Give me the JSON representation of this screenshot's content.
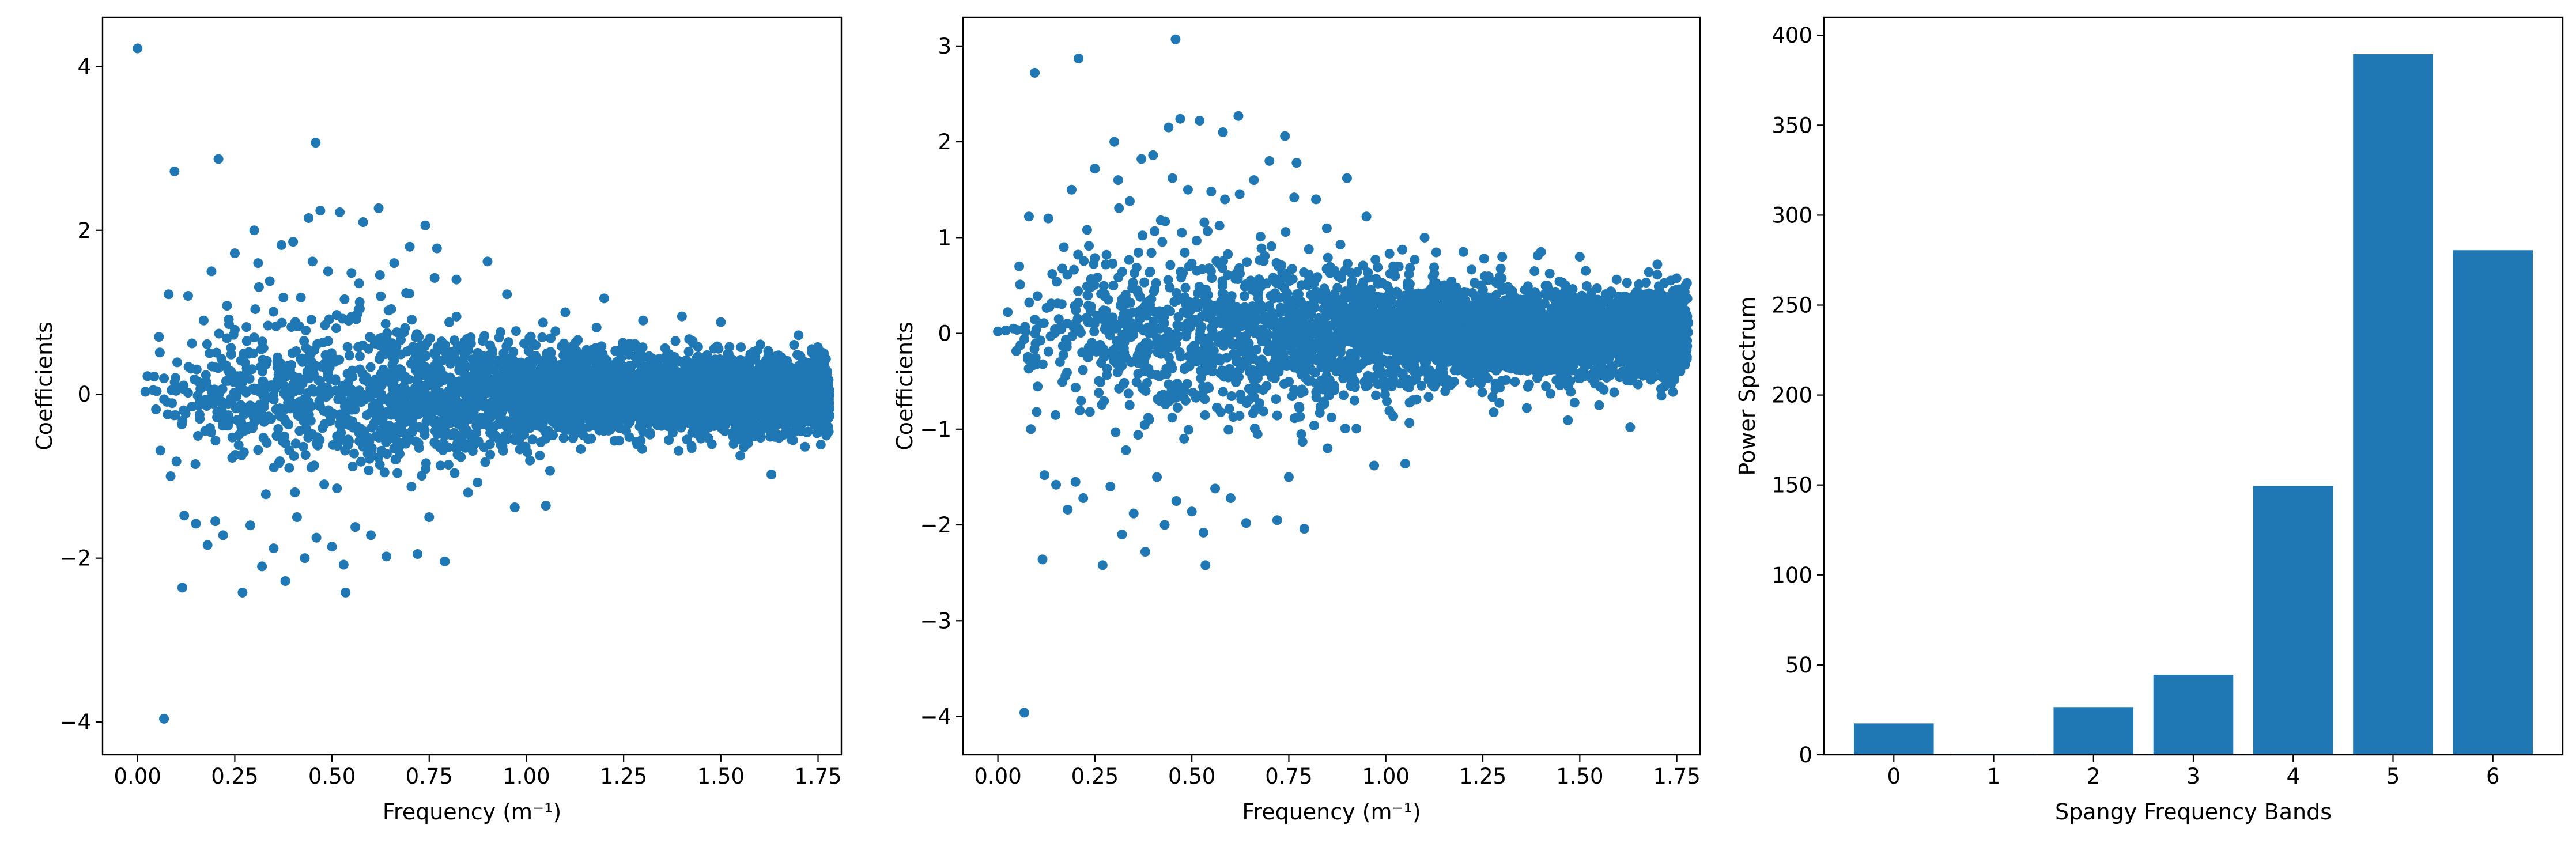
{
  "chart_data": [
    {
      "type": "scatter",
      "xlabel": "Frequency (m⁻¹)",
      "ylabel": "Coefficients",
      "xlim": [
        -0.09,
        1.81
      ],
      "ylim": [
        -4.4,
        4.6
      ],
      "xticks": [
        0.0,
        0.25,
        0.5,
        0.75,
        1.0,
        1.25,
        1.5,
        1.75
      ],
      "xtick_labels": [
        "0.00",
        "0.25",
        "0.50",
        "0.75",
        "1.00",
        "1.25",
        "1.50",
        "1.75"
      ],
      "yticks": [
        -4,
        -2,
        0,
        2,
        4
      ],
      "ytick_labels": [
        "−4",
        "−2",
        "0",
        "2",
        "4"
      ],
      "grid": false,
      "color": "#1f77b4",
      "points": [
        [
          0.0,
          4.22
        ],
        [
          0.068,
          -3.96
        ],
        [
          0.095,
          2.72
        ],
        [
          0.208,
          2.87
        ],
        [
          0.458,
          3.07
        ],
        [
          0.02,
          0.03
        ],
        [
          0.04,
          0.05
        ],
        [
          0.055,
          0.7
        ],
        [
          0.08,
          1.22
        ],
        [
          0.085,
          -1.0
        ],
        [
          0.1,
          -0.82
        ],
        [
          0.115,
          -2.36
        ],
        [
          0.12,
          -1.48
        ],
        [
          0.13,
          1.2
        ],
        [
          0.14,
          0.62
        ],
        [
          0.15,
          -1.58
        ],
        [
          0.16,
          -0.3
        ],
        [
          0.17,
          0.9
        ],
        [
          0.18,
          -1.84
        ],
        [
          0.19,
          1.5
        ],
        [
          0.2,
          -1.55
        ],
        [
          0.22,
          -1.72
        ],
        [
          0.23,
          1.08
        ],
        [
          0.24,
          0.28
        ],
        [
          0.25,
          1.72
        ],
        [
          0.26,
          -0.62
        ],
        [
          0.27,
          -2.42
        ],
        [
          0.28,
          0.82
        ],
        [
          0.29,
          -1.6
        ],
        [
          0.3,
          2.0
        ],
        [
          0.31,
          1.6
        ],
        [
          0.32,
          -2.1
        ],
        [
          0.33,
          -1.22
        ],
        [
          0.34,
          1.38
        ],
        [
          0.35,
          -1.88
        ],
        [
          0.36,
          0.45
        ],
        [
          0.37,
          1.82
        ],
        [
          0.38,
          -2.28
        ],
        [
          0.39,
          -0.9
        ],
        [
          0.4,
          1.86
        ],
        [
          0.41,
          -1.5
        ],
        [
          0.42,
          1.18
        ],
        [
          0.43,
          -2.0
        ],
        [
          0.44,
          2.15
        ],
        [
          0.45,
          1.62
        ],
        [
          0.46,
          -1.75
        ],
        [
          0.47,
          2.24
        ],
        [
          0.48,
          -1.1
        ],
        [
          0.49,
          1.5
        ],
        [
          0.5,
          -1.86
        ],
        [
          0.52,
          2.22
        ],
        [
          0.53,
          -2.08
        ],
        [
          0.535,
          -2.42
        ],
        [
          0.55,
          1.48
        ],
        [
          0.56,
          -1.62
        ],
        [
          0.58,
          2.1
        ],
        [
          0.6,
          -1.72
        ],
        [
          0.62,
          2.27
        ],
        [
          0.64,
          -1.98
        ],
        [
          0.66,
          1.6
        ],
        [
          0.7,
          1.8
        ],
        [
          0.72,
          -1.95
        ],
        [
          0.74,
          2.06
        ],
        [
          0.75,
          -1.5
        ],
        [
          0.77,
          1.78
        ],
        [
          0.79,
          -2.04
        ],
        [
          0.82,
          1.4
        ],
        [
          0.85,
          -1.2
        ],
        [
          0.9,
          1.62
        ],
        [
          0.95,
          1.22
        ],
        [
          0.97,
          -1.38
        ],
        [
          1.05,
          -1.36
        ],
        [
          1.1,
          1.0
        ],
        [
          1.2,
          1.17
        ],
        [
          1.3,
          0.9
        ],
        [
          1.4,
          0.95
        ],
        [
          1.5,
          0.88
        ],
        [
          1.55,
          -0.75
        ],
        [
          1.63,
          -0.98
        ],
        [
          1.7,
          0.72
        ]
      ],
      "dense_bands": [
        [
          0.1,
          0.55
        ],
        [
          0.2,
          0.6
        ],
        [
          0.3,
          0.7
        ],
        [
          0.4,
          0.8
        ],
        [
          0.5,
          0.85
        ],
        [
          0.6,
          0.85
        ],
        [
          0.7,
          0.8
        ],
        [
          0.8,
          0.72
        ],
        [
          0.9,
          0.62
        ],
        [
          1.0,
          0.56
        ],
        [
          1.1,
          0.5
        ],
        [
          1.2,
          0.46
        ],
        [
          1.3,
          0.44
        ],
        [
          1.4,
          0.42
        ],
        [
          1.5,
          0.41
        ],
        [
          1.6,
          0.4
        ],
        [
          1.7,
          0.4
        ],
        [
          1.78,
          0.4
        ]
      ]
    },
    {
      "type": "scatter",
      "xlabel": "Frequency (m⁻¹)",
      "ylabel": "Coefficients",
      "xlim": [
        -0.09,
        1.81
      ],
      "ylim": [
        -4.4,
        3.3
      ],
      "xticks": [
        0.0,
        0.25,
        0.5,
        0.75,
        1.0,
        1.25,
        1.5,
        1.75
      ],
      "xtick_labels": [
        "0.00",
        "0.25",
        "0.50",
        "0.75",
        "1.00",
        "1.25",
        "1.50",
        "1.75"
      ],
      "yticks": [
        -4,
        -3,
        -2,
        -1,
        0,
        1,
        2,
        3
      ],
      "ytick_labels": [
        "−4",
        "−3",
        "−2",
        "−1",
        "0",
        "1",
        "2",
        "3"
      ],
      "grid": false,
      "color": "#1f77b4",
      "points": [
        [
          0.0,
          0.02
        ],
        [
          0.068,
          -3.96
        ],
        [
          0.095,
          2.72
        ],
        [
          0.208,
          2.87
        ],
        [
          0.458,
          3.07
        ],
        [
          0.02,
          0.03
        ],
        [
          0.04,
          0.05
        ],
        [
          0.055,
          0.7
        ],
        [
          0.08,
          1.22
        ],
        [
          0.085,
          -1.0
        ],
        [
          0.1,
          -0.82
        ],
        [
          0.115,
          -2.36
        ],
        [
          0.12,
          -1.48
        ],
        [
          0.13,
          1.2
        ],
        [
          0.14,
          0.62
        ],
        [
          0.15,
          -1.58
        ],
        [
          0.16,
          -0.3
        ],
        [
          0.17,
          0.9
        ],
        [
          0.18,
          -1.84
        ],
        [
          0.19,
          1.5
        ],
        [
          0.2,
          -1.55
        ],
        [
          0.22,
          -1.72
        ],
        [
          0.23,
          1.08
        ],
        [
          0.24,
          0.28
        ],
        [
          0.25,
          1.72
        ],
        [
          0.26,
          -0.62
        ],
        [
          0.27,
          -2.42
        ],
        [
          0.28,
          0.82
        ],
        [
          0.29,
          -1.6
        ],
        [
          0.3,
          2.0
        ],
        [
          0.31,
          1.6
        ],
        [
          0.32,
          -2.1
        ],
        [
          0.33,
          -1.22
        ],
        [
          0.34,
          1.38
        ],
        [
          0.35,
          -1.88
        ],
        [
          0.36,
          0.45
        ],
        [
          0.37,
          1.82
        ],
        [
          0.38,
          -2.28
        ],
        [
          0.39,
          -0.9
        ],
        [
          0.4,
          1.86
        ],
        [
          0.41,
          -1.5
        ],
        [
          0.42,
          1.18
        ],
        [
          0.43,
          -2.0
        ],
        [
          0.44,
          2.15
        ],
        [
          0.45,
          1.62
        ],
        [
          0.46,
          -1.75
        ],
        [
          0.47,
          2.24
        ],
        [
          0.48,
          -1.1
        ],
        [
          0.49,
          1.5
        ],
        [
          0.5,
          -1.86
        ],
        [
          0.52,
          2.22
        ],
        [
          0.53,
          -2.08
        ],
        [
          0.535,
          -2.42
        ],
        [
          0.55,
          1.48
        ],
        [
          0.56,
          -1.62
        ],
        [
          0.58,
          2.1
        ],
        [
          0.6,
          -1.72
        ],
        [
          0.62,
          2.27
        ],
        [
          0.64,
          -1.98
        ],
        [
          0.66,
          1.6
        ],
        [
          0.7,
          1.8
        ],
        [
          0.72,
          -1.95
        ],
        [
          0.74,
          2.06
        ],
        [
          0.75,
          -1.5
        ],
        [
          0.77,
          1.78
        ],
        [
          0.79,
          -2.04
        ],
        [
          0.82,
          1.4
        ],
        [
          0.85,
          -1.2
        ],
        [
          0.9,
          1.62
        ],
        [
          0.95,
          1.22
        ],
        [
          0.97,
          -1.38
        ],
        [
          1.05,
          -1.36
        ],
        [
          1.1,
          1.0
        ],
        [
          1.2,
          0.85
        ],
        [
          1.3,
          0.8
        ],
        [
          1.4,
          0.85
        ],
        [
          1.5,
          0.8
        ],
        [
          1.55,
          -0.75
        ],
        [
          1.63,
          -0.98
        ],
        [
          1.7,
          0.72
        ]
      ],
      "dense_bands": [
        [
          0.1,
          0.55
        ],
        [
          0.2,
          0.6
        ],
        [
          0.3,
          0.7
        ],
        [
          0.4,
          0.8
        ],
        [
          0.5,
          0.85
        ],
        [
          0.6,
          0.85
        ],
        [
          0.7,
          0.8
        ],
        [
          0.8,
          0.72
        ],
        [
          0.9,
          0.62
        ],
        [
          1.0,
          0.56
        ],
        [
          1.1,
          0.5
        ],
        [
          1.2,
          0.46
        ],
        [
          1.3,
          0.44
        ],
        [
          1.4,
          0.42
        ],
        [
          1.5,
          0.41
        ],
        [
          1.6,
          0.4
        ],
        [
          1.7,
          0.4
        ],
        [
          1.78,
          0.4
        ]
      ]
    },
    {
      "type": "bar",
      "xlabel": "Spangy Frequency Bands",
      "ylabel": "Power Spectrum",
      "categories": [
        "0",
        "1",
        "2",
        "3",
        "4",
        "5",
        "6"
      ],
      "values": [
        17.5,
        0.5,
        26.5,
        44.5,
        149.5,
        389.5,
        280.5
      ],
      "xlim": [
        -0.7,
        6.7
      ],
      "ylim": [
        0,
        410
      ],
      "yticks": [
        0,
        50,
        100,
        150,
        200,
        250,
        300,
        350,
        400
      ],
      "ytick_labels": [
        "0",
        "50",
        "100",
        "150",
        "200",
        "250",
        "300",
        "350",
        "400"
      ],
      "grid": false,
      "color": "#1f77b4"
    }
  ]
}
